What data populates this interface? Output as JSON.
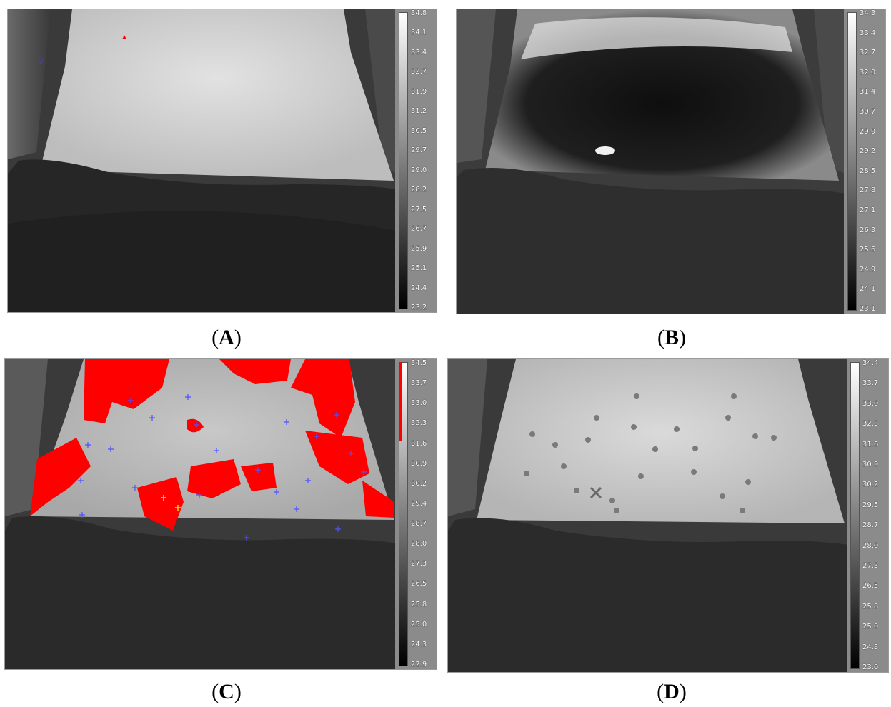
{
  "panels": [
    {
      "id": "A",
      "caption_open": "(",
      "caption_letter": "A",
      "caption_close": ")",
      "scale": [
        "34.8",
        "34.1",
        "33.4",
        "32.7",
        "31.9",
        "31.2",
        "30.5",
        "29.7",
        "29.0",
        "28.2",
        "27.5",
        "26.7",
        "25.9",
        "25.1",
        "24.4",
        "23.2"
      ]
    },
    {
      "id": "B",
      "caption_open": "(",
      "caption_letter": "B",
      "caption_close": ")",
      "scale": [
        "34.3",
        "33.4",
        "32.7",
        "32.0",
        "31.4",
        "30.7",
        "29.9",
        "29.2",
        "28.5",
        "27.8",
        "27.1",
        "26.3",
        "25.6",
        "24.9",
        "24.1",
        "23.1"
      ]
    },
    {
      "id": "C",
      "caption_open": "(",
      "caption_letter": "C",
      "caption_close": ")",
      "scale": [
        "34.5",
        "33.7",
        "33.0",
        "32.3",
        "31.6",
        "30.9",
        "30.2",
        "29.4",
        "28.7",
        "28.0",
        "27.3",
        "26.5",
        "25.8",
        "25.0",
        "24.3",
        "22.9"
      ]
    },
    {
      "id": "D",
      "caption_open": "(",
      "caption_letter": "D",
      "caption_close": ")",
      "scale": [
        "34.4",
        "33.7",
        "33.0",
        "32.3",
        "31.6",
        "30.9",
        "30.2",
        "29.5",
        "28.7",
        "28.0",
        "27.3",
        "26.5",
        "25.8",
        "25.0",
        "24.3",
        "23.0"
      ]
    }
  ],
  "colors": {
    "highlight": "#ff0000",
    "marker_blue": "#4040ff",
    "marker_yellow": "#ffee00"
  }
}
